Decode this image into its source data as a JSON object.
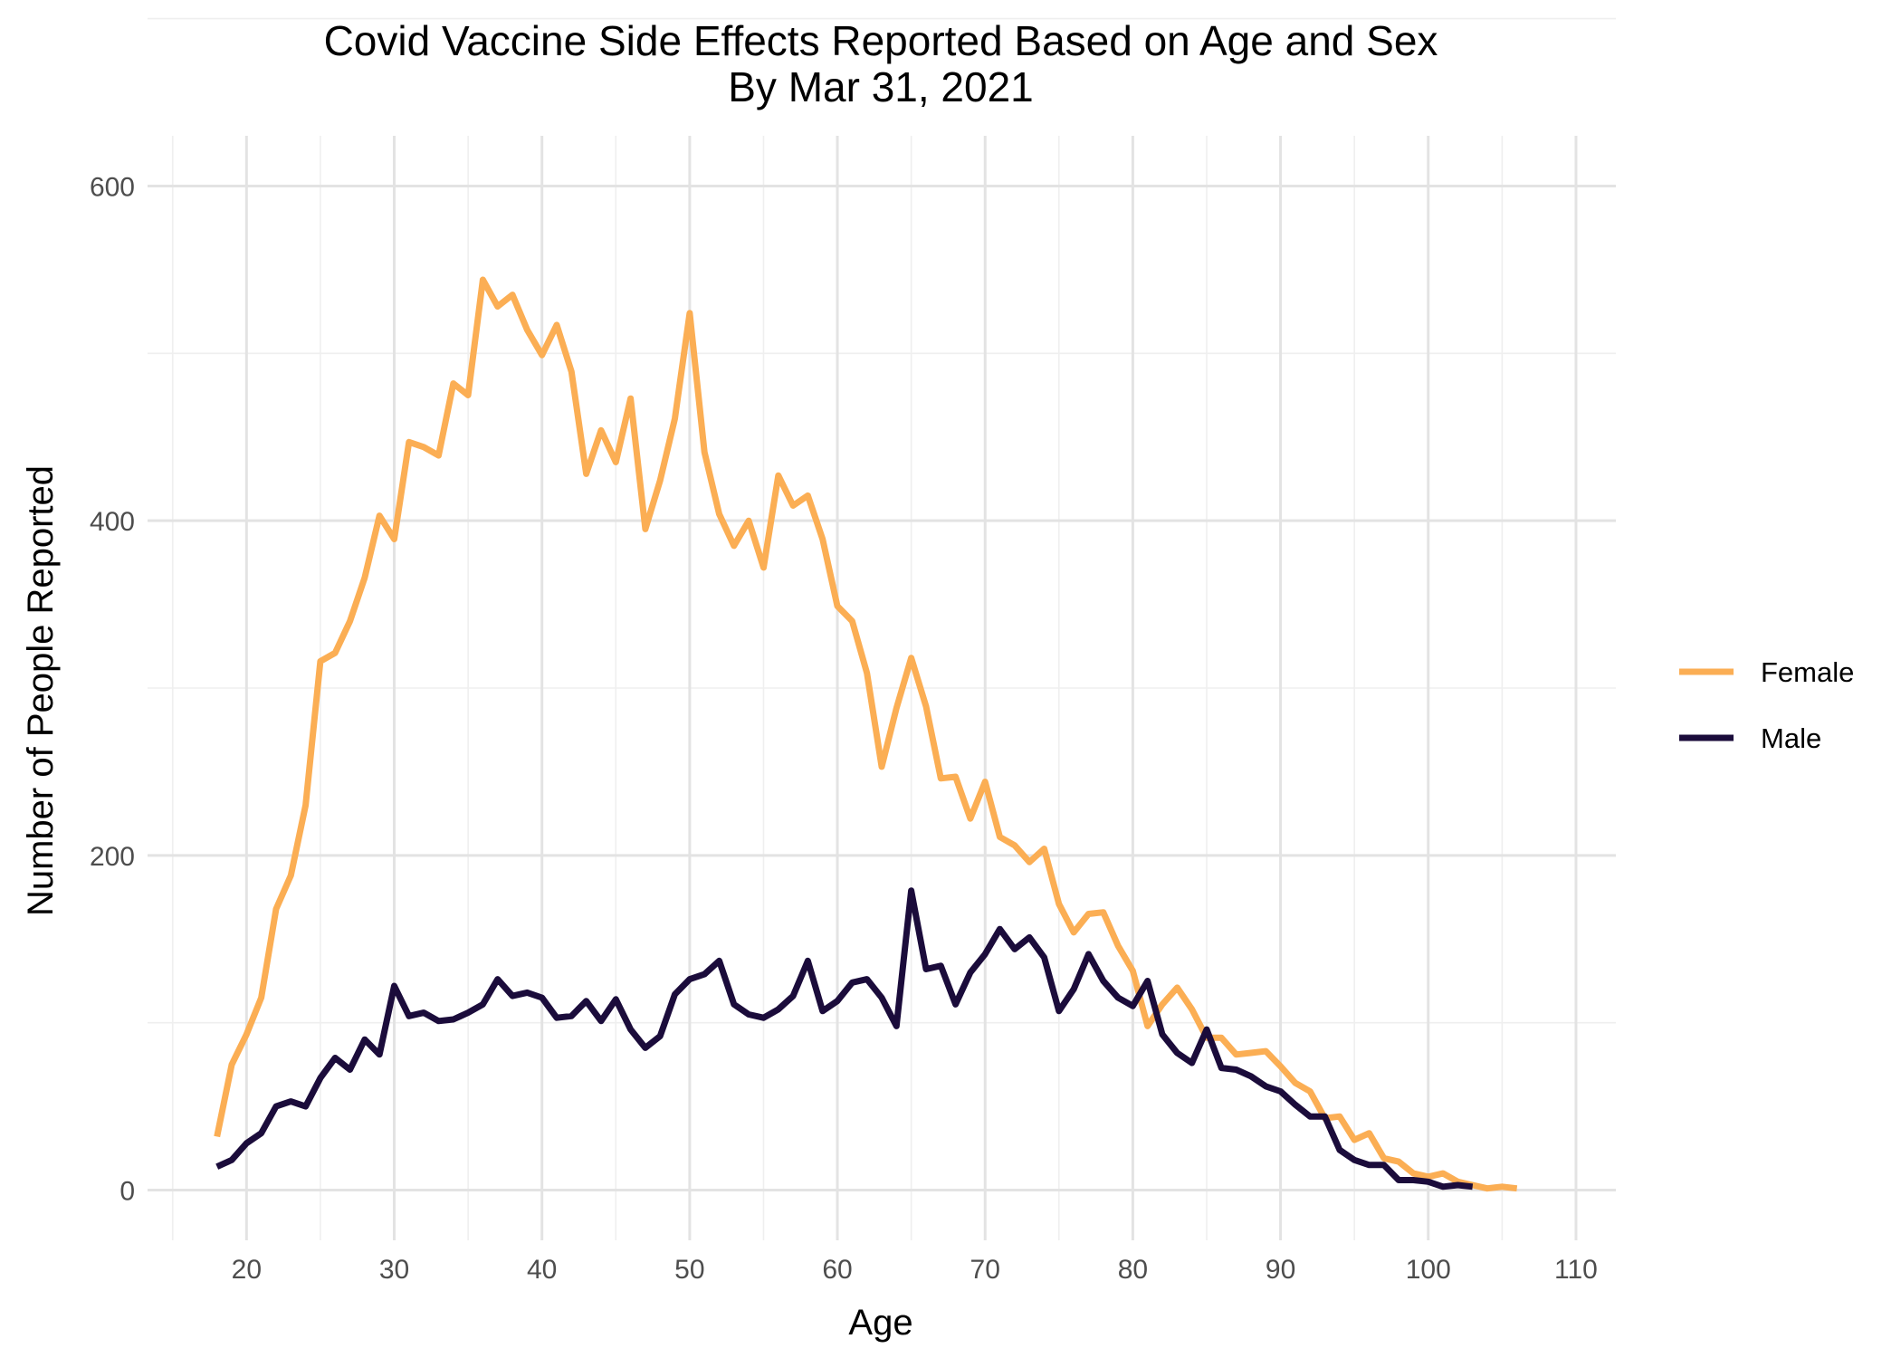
{
  "chart_data": {
    "type": "line",
    "title": "Covid Vaccine Side Effects Reported Based on Age and Sex",
    "subtitle": "By Mar 31, 2021",
    "xlabel": "Age",
    "ylabel": "Number of People Reported",
    "xlim": [
      13.3,
      112.7
    ],
    "ylim": [
      -30,
      630
    ],
    "x_ticks": [
      20,
      30,
      40,
      50,
      60,
      70,
      80,
      90,
      100,
      110
    ],
    "y_ticks": [
      0,
      200,
      400,
      600
    ],
    "grid": true,
    "legend_position": "right",
    "series": [
      {
        "name": "Female",
        "color": "#FBAE54",
        "x": [
          18,
          19,
          20,
          21,
          22,
          23,
          24,
          25,
          26,
          27,
          28,
          29,
          30,
          31,
          32,
          33,
          34,
          35,
          36,
          37,
          38,
          39,
          40,
          41,
          42,
          43,
          44,
          45,
          46,
          47,
          48,
          49,
          50,
          51,
          52,
          53,
          54,
          55,
          56,
          57,
          58,
          59,
          60,
          61,
          62,
          63,
          64,
          65,
          66,
          67,
          68,
          69,
          70,
          71,
          72,
          73,
          74,
          75,
          76,
          77,
          78,
          79,
          80,
          81,
          82,
          83,
          84,
          85,
          86,
          87,
          88,
          89,
          90,
          91,
          92,
          93,
          94,
          95,
          96,
          97,
          98,
          99,
          100,
          101,
          102,
          103,
          104,
          105,
          106
        ],
        "values": [
          32,
          75,
          93,
          115,
          168,
          188,
          230,
          316,
          321,
          340,
          366,
          403,
          389,
          447,
          444,
          439,
          482,
          475,
          544,
          528,
          535,
          514,
          499,
          517,
          489,
          428,
          454,
          435,
          473,
          395,
          424,
          461,
          524,
          441,
          404,
          385,
          400,
          372,
          427,
          409,
          415,
          389,
          349,
          340,
          309,
          253,
          288,
          318,
          289,
          246,
          247,
          222,
          244,
          211,
          206,
          196,
          204,
          171,
          154,
          165,
          166,
          146,
          131,
          98,
          111,
          121,
          108,
          91,
          91,
          81,
          82,
          83,
          74,
          64,
          59,
          43,
          44,
          30,
          34,
          19,
          17,
          10,
          8,
          10,
          5,
          3,
          1,
          2,
          1
        ]
      },
      {
        "name": "Male",
        "color": "#1B0C3B",
        "x": [
          18,
          19,
          20,
          21,
          22,
          23,
          24,
          25,
          26,
          27,
          28,
          29,
          30,
          31,
          32,
          33,
          34,
          35,
          36,
          37,
          38,
          39,
          40,
          41,
          42,
          43,
          44,
          45,
          46,
          47,
          48,
          49,
          50,
          51,
          52,
          53,
          54,
          55,
          56,
          57,
          58,
          59,
          60,
          61,
          62,
          63,
          64,
          65,
          66,
          67,
          68,
          69,
          70,
          71,
          72,
          73,
          74,
          75,
          76,
          77,
          78,
          79,
          80,
          81,
          82,
          83,
          84,
          85,
          86,
          87,
          88,
          89,
          90,
          91,
          92,
          93,
          94,
          95,
          96,
          97,
          98,
          99,
          100,
          101,
          102,
          103
        ],
        "values": [
          14,
          18,
          28,
          34,
          50,
          53,
          50,
          67,
          79,
          72,
          90,
          81,
          122,
          104,
          106,
          101,
          102,
          106,
          111,
          126,
          116,
          118,
          115,
          103,
          104,
          113,
          101,
          114,
          96,
          85,
          92,
          117,
          126,
          129,
          137,
          111,
          105,
          103,
          108,
          116,
          137,
          107,
          113,
          124,
          126,
          115,
          98,
          179,
          132,
          134,
          111,
          130,
          141,
          156,
          144,
          151,
          139,
          107,
          120,
          141,
          125,
          115,
          110,
          125,
          93,
          82,
          76,
          96,
          73,
          72,
          68,
          62,
          59,
          51,
          44,
          44,
          24,
          18,
          15,
          15,
          6,
          6,
          5,
          2,
          3,
          2
        ]
      }
    ]
  }
}
